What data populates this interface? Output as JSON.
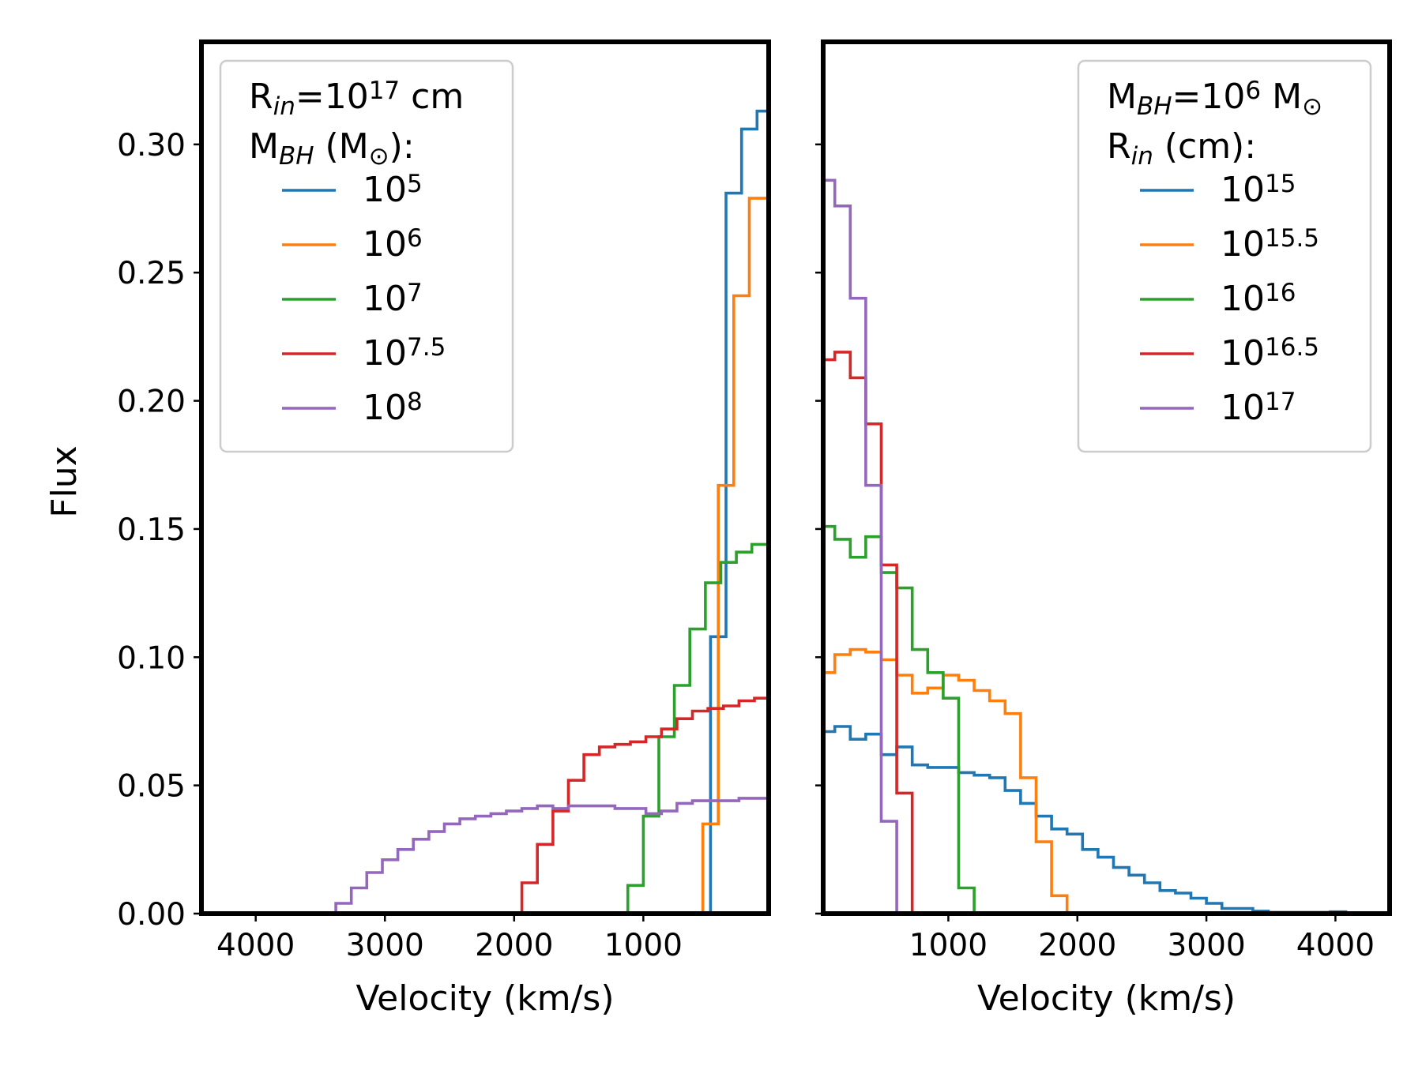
{
  "figure": {
    "ylabel": "Flux"
  },
  "chart_data": [
    {
      "type": "line",
      "step": true,
      "xlabel": "Velocity (km/s)",
      "ylabel": "Flux",
      "xlim": [
        4420,
        30
      ],
      "ylim": [
        0,
        0.34
      ],
      "x_inverted": true,
      "xticks": [
        4000,
        3000,
        2000,
        1000
      ],
      "xtick_labels": [
        "4000",
        "3000",
        "2000",
        "1000"
      ],
      "yticks": [
        0,
        0.05,
        0.1,
        0.15,
        0.2,
        0.25,
        0.3
      ],
      "ytick_labels": [
        "0.00",
        "0.05",
        "0.10",
        "0.15",
        "0.20",
        "0.25",
        "0.30"
      ],
      "legend": {
        "placement": "upper left",
        "title_lines": [
          {
            "base": "R",
            "sub": "in",
            "rest": "=10",
            "sup": "17",
            "tail": " cm"
          },
          {
            "base": "M",
            "sub": "BH",
            "rest": " (M",
            "sym": "⊙",
            "tail": "):"
          }
        ]
      },
      "series": [
        {
          "name": "10",
          "sup": "5",
          "color": "#1f77b4",
          "x": [
            600,
            480,
            360,
            240,
            120,
            0
          ],
          "y": [
            0.0,
            0.108,
            0.281,
            0.306,
            0.313,
            0.313
          ]
        },
        {
          "name": "10",
          "sup": "6",
          "color": "#ff7f0e",
          "x": [
            660,
            540,
            420,
            300,
            180,
            0
          ],
          "y": [
            0.0,
            0.035,
            0.167,
            0.241,
            0.279,
            0.289
          ]
        },
        {
          "name": "10",
          "sup": "7",
          "color": "#2ca02c",
          "x": [
            1240,
            1120,
            1000,
            880,
            760,
            640,
            520,
            400,
            280,
            160,
            0
          ],
          "y": [
            0.0,
            0.011,
            0.038,
            0.069,
            0.089,
            0.111,
            0.129,
            0.137,
            0.141,
            0.144,
            0.145
          ]
        },
        {
          "name": "10",
          "sup": "7.5",
          "color": "#d62728",
          "x": [
            2060,
            1940,
            1820,
            1700,
            1580,
            1460,
            1340,
            1220,
            1100,
            980,
            860,
            740,
            620,
            500,
            380,
            260,
            140,
            0
          ],
          "y": [
            0.0,
            0.012,
            0.027,
            0.04,
            0.052,
            0.062,
            0.065,
            0.066,
            0.067,
            0.069,
            0.072,
            0.076,
            0.079,
            0.08,
            0.081,
            0.083,
            0.084,
            0.082
          ]
        },
        {
          "name": "10",
          "sup": "8",
          "color": "#9467bd",
          "x": [
            3500,
            3380,
            3260,
            3140,
            3020,
            2900,
            2780,
            2660,
            2540,
            2420,
            2300,
            2180,
            2060,
            1940,
            1820,
            1700,
            1580,
            1460,
            1340,
            1220,
            1100,
            980,
            860,
            740,
            620,
            500,
            380,
            260,
            140,
            0
          ],
          "y": [
            0.0,
            0.004,
            0.01,
            0.016,
            0.021,
            0.025,
            0.029,
            0.032,
            0.035,
            0.037,
            0.038,
            0.039,
            0.04,
            0.041,
            0.042,
            0.041,
            0.042,
            0.042,
            0.042,
            0.041,
            0.041,
            0.039,
            0.04,
            0.043,
            0.044,
            0.044,
            0.044,
            0.045,
            0.045,
            0.045
          ]
        }
      ]
    },
    {
      "type": "line",
      "step": true,
      "xlabel": "Velocity (km/s)",
      "xlim": [
        30,
        4420
      ],
      "ylim": [
        0,
        0.34
      ],
      "x_inverted": false,
      "xticks": [
        1000,
        2000,
        3000,
        4000
      ],
      "xtick_labels": [
        "1000",
        "2000",
        "3000",
        "4000"
      ],
      "yticks": [
        0,
        0.05,
        0.1,
        0.15,
        0.2,
        0.25,
        0.3
      ],
      "legend": {
        "placement": "upper right",
        "title_lines": [
          {
            "base": "M",
            "sub": "BH",
            "rest": "=10",
            "sup": "6",
            "tail": " M",
            "sym": "⊙"
          },
          {
            "base": "R",
            "sub": "in",
            "rest": " (cm):",
            "tail": ""
          }
        ]
      },
      "series": [
        {
          "name": "10",
          "sup": "15",
          "color": "#1f77b4",
          "x": [
            0,
            120,
            240,
            360,
            480,
            600,
            720,
            840,
            960,
            1080,
            1200,
            1320,
            1440,
            1560,
            1680,
            1800,
            1920,
            2040,
            2160,
            2280,
            2400,
            2520,
            2640,
            2760,
            2880,
            3000,
            3120,
            3240,
            3360,
            3480,
            3960,
            4080
          ],
          "y": [
            0.071,
            0.073,
            0.068,
            0.07,
            0.062,
            0.065,
            0.058,
            0.057,
            0.057,
            0.055,
            0.054,
            0.053,
            0.048,
            0.043,
            0.038,
            0.033,
            0.031,
            0.025,
            0.022,
            0.018,
            0.015,
            0.012,
            0.009,
            0.008,
            0.006,
            0.004,
            0.002,
            0.002,
            0.001,
            0.0005,
            0.0007,
            0.0
          ]
        },
        {
          "name": "10",
          "sup": "15.5",
          "color": "#ff7f0e",
          "x": [
            0,
            120,
            240,
            360,
            480,
            600,
            720,
            840,
            960,
            1080,
            1200,
            1320,
            1440,
            1560,
            1680,
            1800,
            1920
          ],
          "y": [
            0.094,
            0.101,
            0.103,
            0.102,
            0.099,
            0.093,
            0.086,
            0.088,
            0.093,
            0.091,
            0.087,
            0.083,
            0.078,
            0.053,
            0.028,
            0.007,
            0.0
          ]
        },
        {
          "name": "10",
          "sup": "16",
          "color": "#2ca02c",
          "x": [
            0,
            120,
            240,
            360,
            480,
            600,
            720,
            840,
            960,
            1080,
            1200
          ],
          "y": [
            0.151,
            0.146,
            0.139,
            0.147,
            0.133,
            0.127,
            0.103,
            0.094,
            0.084,
            0.01,
            0.0
          ]
        },
        {
          "name": "10",
          "sup": "16.5",
          "color": "#d62728",
          "x": [
            0,
            120,
            240,
            360,
            480,
            600,
            720
          ],
          "y": [
            0.216,
            0.219,
            0.209,
            0.191,
            0.136,
            0.047,
            0.0
          ]
        },
        {
          "name": "10",
          "sup": "17",
          "color": "#9467bd",
          "x": [
            0,
            120,
            240,
            360,
            480,
            600
          ],
          "y": [
            0.286,
            0.276,
            0.24,
            0.167,
            0.036,
            0.0
          ]
        }
      ]
    }
  ]
}
